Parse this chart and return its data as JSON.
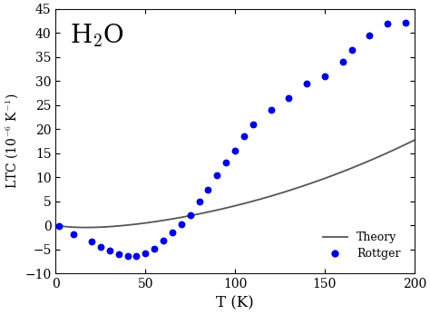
{
  "xlabel": "T (K)",
  "ylabel": "LTC (10$^{-6}$ K$^{-1}$)",
  "xlim": [
    0,
    200
  ],
  "ylim": [
    -10,
    45
  ],
  "xticks": [
    0,
    50,
    100,
    150,
    200
  ],
  "yticks": [
    -10,
    -5,
    0,
    5,
    10,
    15,
    20,
    25,
    30,
    35,
    40,
    45
  ],
  "theory_color": "#555555",
  "rottger_color": "#0000dd",
  "rottger_points": [
    [
      2,
      -0.2
    ],
    [
      10,
      -1.8
    ],
    [
      20,
      -3.3
    ],
    [
      25,
      -4.5
    ],
    [
      30,
      -5.3
    ],
    [
      35,
      -6.0
    ],
    [
      40,
      -6.4
    ],
    [
      45,
      -6.3
    ],
    [
      50,
      -5.8
    ],
    [
      55,
      -4.9
    ],
    [
      60,
      -3.2
    ],
    [
      65,
      -1.5
    ],
    [
      70,
      0.2
    ],
    [
      75,
      2.2
    ],
    [
      80,
      5.0
    ],
    [
      85,
      7.5
    ],
    [
      90,
      10.5
    ],
    [
      95,
      13.0
    ],
    [
      100,
      15.5
    ],
    [
      105,
      18.5
    ],
    [
      110,
      21.0
    ],
    [
      120,
      24.0
    ],
    [
      130,
      26.5
    ],
    [
      140,
      29.5
    ],
    [
      150,
      31.0
    ],
    [
      160,
      34.0
    ],
    [
      165,
      36.5
    ],
    [
      175,
      39.5
    ],
    [
      185,
      42.0
    ],
    [
      195,
      42.2
    ]
  ],
  "theory_params": {
    "A": 0.055,
    "tau": 30.0,
    "B": 0.00034,
    "n": 2.05
  },
  "background_color": "#ffffff",
  "figsize": [
    4.74,
    3.47
  ],
  "dpi": 100
}
